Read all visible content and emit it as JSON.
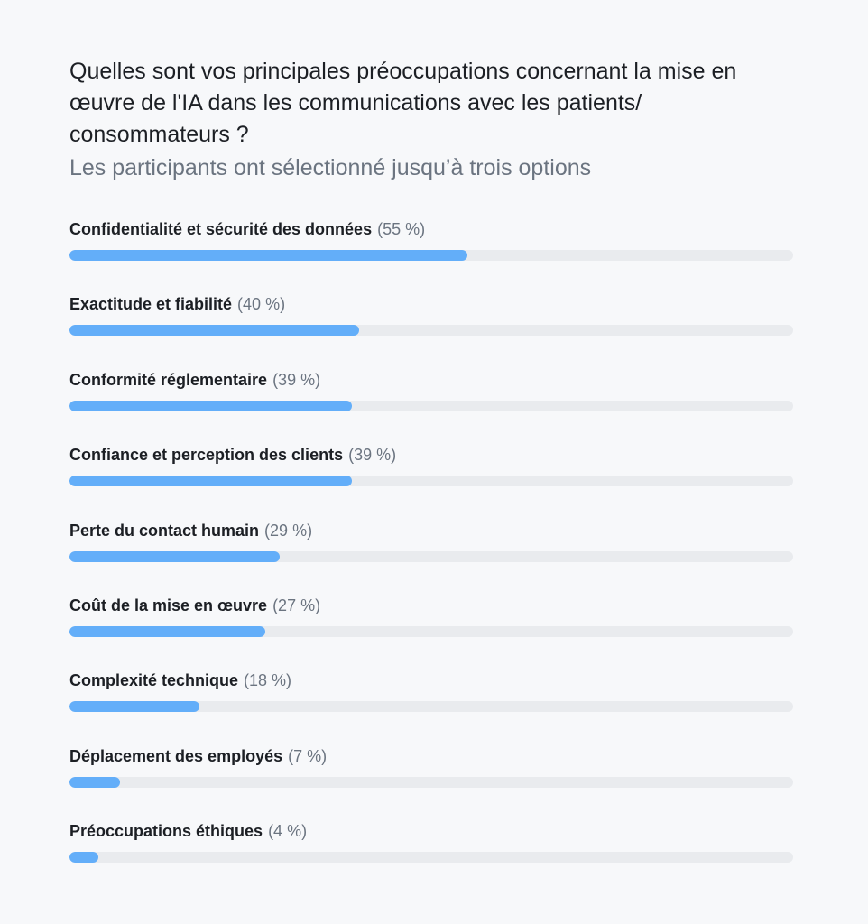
{
  "header": {
    "title": "Quelles sont vos principales préoccupations concernant la mise en œuvre de l'IA dans les communications avec les patients/ consommateurs ?",
    "subtitle": "Les participants ont sélectionné jusqu’à trois options"
  },
  "colors": {
    "bar": "#63aef9",
    "track": "#e9ebee",
    "background": "#f7f8fa"
  },
  "chart_data": {
    "type": "bar",
    "orientation": "horizontal",
    "title": "Quelles sont vos principales préoccupations concernant la mise en œuvre de l'IA dans les communications avec les patients/ consommateurs ?",
    "subtitle": "Les participants ont sélectionné jusqu’à trois options",
    "xlim": [
      0,
      100
    ],
    "grid": false,
    "categories": [
      "Confidentialité et sécurité des données",
      "Exactitude et fiabilité",
      "Conformité réglementaire",
      "Confiance et perception des clients",
      "Perte du contact humain",
      "Coût de la mise en œuvre",
      "Complexité technique",
      "Déplacement des employés",
      "Préoccupations éthiques"
    ],
    "values": [
      55,
      40,
      39,
      39,
      29,
      27,
      18,
      7,
      4
    ],
    "value_labels": [
      "(55 %)",
      "(40 %)",
      "(39 %)",
      "(39 %)",
      "(29 %)",
      "(27 %)",
      "(18 %)",
      "(7 %)",
      "(4 %)"
    ]
  }
}
